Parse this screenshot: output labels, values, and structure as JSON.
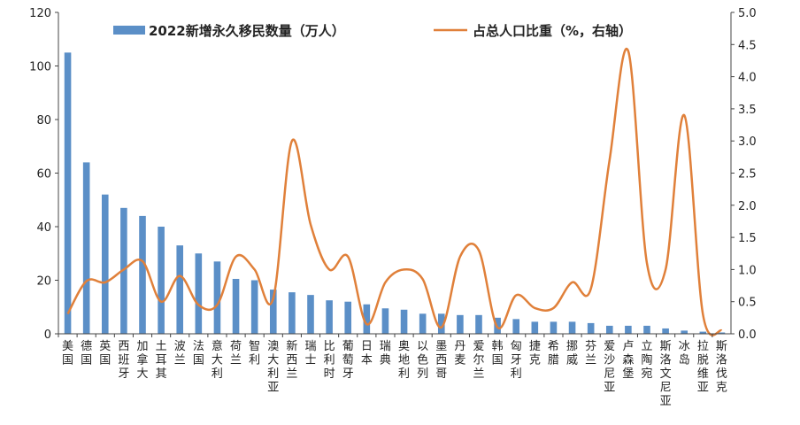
{
  "chart_data": {
    "type": "bar",
    "categories": [
      "美国",
      "德国",
      "英国",
      "西班牙",
      "加拿大",
      "土耳其",
      "波兰",
      "法国",
      "意大利",
      "荷兰",
      "智利",
      "澳大利亚",
      "新西兰",
      "瑞士",
      "比利时",
      "葡萄牙",
      "日本",
      "瑞典",
      "奥地利",
      "以色列",
      "墨西哥",
      "丹麦",
      "爱尔兰",
      "韩国",
      "匈牙利",
      "捷克",
      "希腊",
      "挪威",
      "芬兰",
      "爱沙尼亚",
      "卢森堡",
      "立陶宛",
      "斯洛文尼亚",
      "冰岛",
      "拉脱维亚",
      "斯洛伐克"
    ],
    "series": [
      {
        "name": "2022新增永久移民数量（万人）",
        "kind": "bar",
        "axis": "left",
        "color": "#5b8fc7",
        "values": [
          105,
          64,
          52,
          47,
          44,
          40,
          33,
          30,
          27,
          20.5,
          20,
          16.5,
          15.5,
          14.5,
          12.5,
          12,
          11,
          9.5,
          9,
          7.5,
          7.5,
          7,
          7,
          6,
          5.5,
          4.5,
          4.5,
          4.5,
          4,
          3,
          3,
          3,
          2,
          1.2,
          0.8,
          0.5
        ]
      },
      {
        "name": "占总人口比重（%，右轴）",
        "kind": "line",
        "axis": "right",
        "color": "#e0803a",
        "values": [
          0.31,
          0.82,
          0.8,
          1.0,
          1.13,
          0.5,
          0.9,
          0.45,
          0.45,
          1.2,
          1.0,
          0.55,
          3.0,
          1.7,
          1.0,
          1.2,
          0.15,
          0.8,
          1.0,
          0.85,
          0.1,
          1.2,
          1.3,
          0.1,
          0.6,
          0.4,
          0.4,
          0.8,
          0.7,
          2.7,
          4.4,
          1.1,
          1.0,
          3.4,
          0.3,
          0.05
        ]
      }
    ],
    "y_left": {
      "min": 0,
      "max": 120,
      "ticks": [
        "0",
        "20",
        "40",
        "60",
        "80",
        "100",
        "120"
      ]
    },
    "y_right": {
      "min": 0,
      "max": 5,
      "ticks": [
        "0.0",
        "0.5",
        "1.0",
        "1.5",
        "2.0",
        "2.5",
        "3.0",
        "3.5",
        "4.0",
        "4.5",
        "5.0"
      ]
    },
    "legend": "top",
    "grid": false
  },
  "legend": {
    "bar_label": "2022新增永久移民数量（万人）",
    "line_label": "占总人口比重（%，右轴）"
  }
}
